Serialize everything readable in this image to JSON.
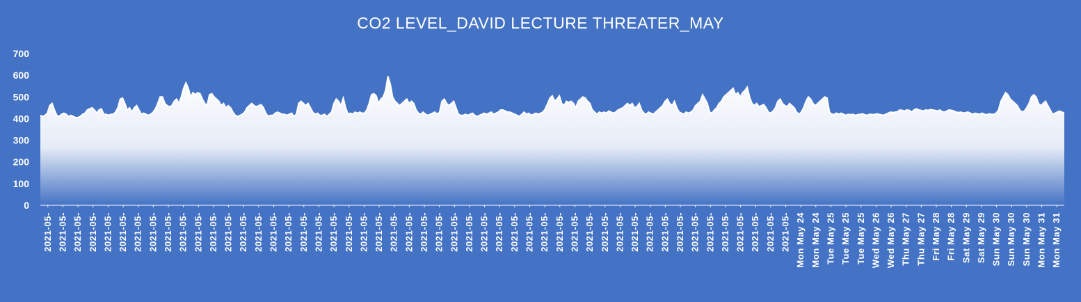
{
  "colors": {
    "background": "#4472C4",
    "area_top": "#FFFFFF",
    "area_bottom": "#4472C4",
    "text": "#FFFFFF"
  },
  "chart_data": {
    "type": "area",
    "title": "CO2 LEVEL_DAVID LECTURE THREATER_MAY",
    "xlabel": "",
    "ylabel": "",
    "ylim": [
      0,
      700
    ],
    "yticks": [
      0,
      100,
      200,
      300,
      400,
      500,
      600,
      700
    ],
    "grid": false,
    "legend": "none",
    "x_tick_labels": [
      "2021-05-",
      "2021-05-",
      "2021-05-",
      "2021-05-",
      "2021-05-",
      "2021-05-",
      "2021-05-",
      "2021-05-",
      "2021-05-",
      "2021-05-",
      "2021-05-",
      "2021-05-",
      "2021-05-",
      "2021-05-",
      "2021-05-",
      "2021-05-",
      "2021-05-",
      "2021-05-",
      "2021-05-",
      "2021-05-",
      "2021-05-",
      "2021-05-",
      "2021-05-",
      "2021-05-",
      "2021-05-",
      "2021-05-",
      "2021-05-",
      "2021-05-",
      "2021-05-",
      "2021-05-",
      "2021-05-",
      "2021-05-",
      "2021-05-",
      "2021-05-",
      "2021-05-",
      "2021-05-",
      "2021-05-",
      "2021-05-",
      "2021-05-",
      "2021-05-",
      "2021-05-",
      "2021-05-",
      "2021-05-",
      "2021-05-",
      "2021-05-",
      "2021-05-",
      "2021-05-",
      "2021-05-",
      "2021-05-",
      "2021-05-",
      "Mon May 24",
      "Mon May 24",
      "Tue May 25",
      "Tue May 25",
      "Tue May 25",
      "Wed May 26",
      "Wed May 26",
      "Thu May 27",
      "Thu May 27",
      "Fri May 28",
      "Fri May 28",
      "Sat May 29",
      "Sat May 29",
      "Sun May 30",
      "Sun May 30",
      "Sun May 30",
      "Mon May 31",
      "Mon May 31"
    ],
    "values": [
      415,
      410,
      415,
      425,
      460,
      470,
      440,
      415,
      410,
      420,
      425,
      420,
      410,
      415,
      410,
      405,
      405,
      410,
      420,
      425,
      440,
      445,
      450,
      440,
      425,
      440,
      445,
      420,
      420,
      415,
      420,
      420,
      430,
      450,
      490,
      495,
      470,
      440,
      450,
      430,
      450,
      460,
      440,
      420,
      425,
      420,
      415,
      420,
      430,
      445,
      470,
      500,
      500,
      470,
      460,
      455,
      460,
      480,
      490,
      470,
      500,
      540,
      565,
      540,
      500,
      520,
      510,
      520,
      515,
      490,
      470,
      460,
      510,
      515,
      500,
      490,
      480,
      460,
      470,
      450,
      460,
      450,
      430,
      415,
      410,
      415,
      420,
      430,
      450,
      460,
      470,
      460,
      455,
      460,
      465,
      450,
      425,
      410,
      415,
      415,
      425,
      430,
      425,
      420,
      420,
      415,
      420,
      425,
      410,
      420,
      470,
      480,
      470,
      460,
      470,
      450,
      430,
      420,
      425,
      415,
      415,
      420,
      410,
      420,
      430,
      470,
      490,
      480,
      460,
      495,
      450,
      420,
      425,
      420,
      430,
      425,
      430,
      425,
      425,
      440,
      470,
      510,
      515,
      505,
      470,
      490,
      500,
      530,
      595,
      560,
      500,
      480,
      470,
      460,
      470,
      480,
      490,
      470,
      480,
      470,
      440,
      425,
      420,
      430,
      420,
      415,
      420,
      425,
      430,
      420,
      430,
      480,
      490,
      470,
      460,
      470,
      480,
      450,
      420,
      415,
      415,
      420,
      415,
      420,
      425,
      415,
      410,
      415,
      420,
      425,
      420,
      425,
      430,
      420,
      425,
      430,
      440,
      440,
      435,
      430,
      430,
      425,
      420,
      415,
      410,
      420,
      430,
      420,
      425,
      415,
      420,
      425,
      420,
      425,
      430,
      445,
      470,
      495,
      505,
      480,
      490,
      505,
      470,
      460,
      480,
      475,
      480,
      470,
      450,
      480,
      490,
      500,
      495,
      480,
      470,
      440,
      430,
      420,
      430,
      425,
      430,
      425,
      435,
      430,
      425,
      430,
      440,
      445,
      450,
      460,
      470,
      460,
      470,
      450,
      455,
      470,
      440,
      425,
      420,
      430,
      425,
      420,
      430,
      440,
      450,
      460,
      480,
      490,
      470,
      460,
      480,
      450,
      430,
      425,
      420,
      430,
      425,
      430,
      440,
      460,
      470,
      480,
      510,
      490,
      470,
      430,
      425,
      440,
      450,
      470,
      480,
      500,
      510,
      520,
      530,
      540,
      510,
      520,
      500,
      520,
      530,
      545,
      500,
      470,
      460,
      470,
      455,
      460,
      465,
      450,
      430,
      425,
      435,
      450,
      480,
      490,
      470,
      460,
      455,
      470,
      460,
      450,
      430,
      420,
      430,
      450,
      480,
      500,
      490,
      470,
      460,
      470,
      480,
      490,
      500,
      495,
      430,
      420,
      420,
      425,
      420,
      425,
      420,
      415,
      420,
      418,
      420,
      415,
      418,
      420,
      422,
      418,
      415,
      420,
      420,
      418,
      422,
      420,
      418,
      415,
      420,
      425,
      430,
      428,
      430,
      432,
      440,
      438,
      435,
      440,
      438,
      430,
      440,
      445,
      440,
      438,
      435,
      440,
      438,
      442,
      440,
      438,
      435,
      440,
      432,
      430,
      435,
      440,
      438,
      435,
      430,
      428,
      430,
      425,
      428,
      430,
      425,
      420,
      425,
      422,
      420,
      425,
      420,
      418,
      422,
      420,
      420,
      425,
      440,
      480,
      500,
      520,
      510,
      490,
      480,
      470,
      460,
      440,
      430,
      435,
      450,
      470,
      500,
      510,
      500,
      470,
      460,
      470,
      480,
      460,
      440,
      420,
      425,
      430,
      435,
      430,
      425
    ]
  }
}
